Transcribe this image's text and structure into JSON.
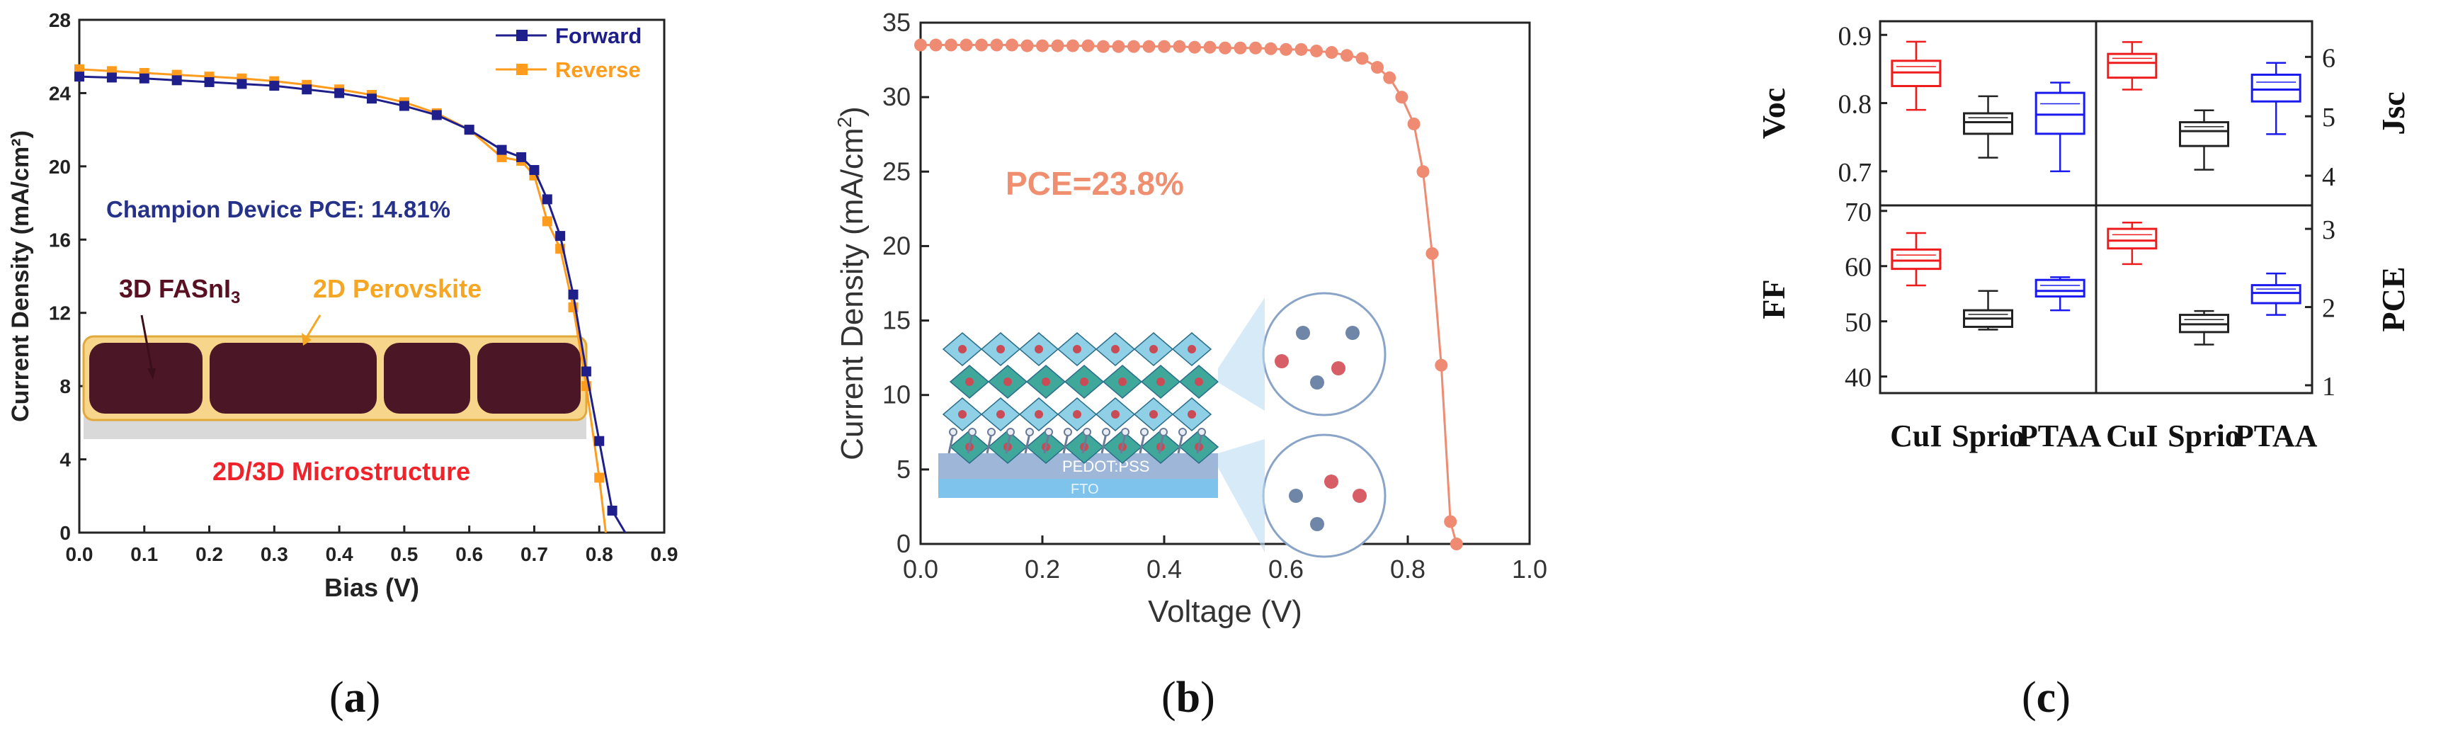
{
  "panel_labels": {
    "a": "a",
    "b": "b",
    "c": "c"
  },
  "colors": {
    "forward": "#1f1f8c",
    "reverse": "#ff9c1e",
    "jv_b": "#ee8b72",
    "cui": "#ee1c1c",
    "sprio": "#222222",
    "ptaa": "#1a1aee"
  },
  "chart_data": [
    {
      "type": "line",
      "xlabel": "Bias (V)",
      "ylabel": "Current Density (mA/cm²)",
      "xlim": [
        0.0,
        0.9
      ],
      "ylim": [
        0,
        28
      ],
      "xticks": [
        "0.0",
        "0.1",
        "0.2",
        "0.3",
        "0.4",
        "0.5",
        "0.6",
        "0.7",
        "0.8",
        "0.9"
      ],
      "yticks": [
        "0",
        "4",
        "8",
        "12",
        "16",
        "20",
        "24",
        "28"
      ],
      "legend": "top-right",
      "series": [
        {
          "name": "Forward",
          "marker": "square",
          "voc": 0.84,
          "jsc": 24.9,
          "x": [
            0.0,
            0.05,
            0.1,
            0.15,
            0.2,
            0.25,
            0.3,
            0.35,
            0.4,
            0.45,
            0.5,
            0.55,
            0.6,
            0.65,
            0.68,
            0.7,
            0.72,
            0.74,
            0.76,
            0.78,
            0.8,
            0.82
          ],
          "y": [
            24.9,
            24.85,
            24.8,
            24.7,
            24.6,
            24.5,
            24.4,
            24.2,
            24.0,
            23.7,
            23.3,
            22.8,
            22.0,
            20.9,
            20.5,
            19.8,
            18.2,
            16.2,
            13.0,
            8.8,
            5.0,
            1.2
          ]
        },
        {
          "name": "Reverse",
          "marker": "square",
          "voc": 0.81,
          "jsc": 25.3,
          "x": [
            0.0,
            0.05,
            0.1,
            0.15,
            0.2,
            0.25,
            0.3,
            0.35,
            0.4,
            0.45,
            0.5,
            0.55,
            0.6,
            0.65,
            0.68,
            0.7,
            0.72,
            0.74,
            0.76,
            0.78,
            0.8
          ],
          "y": [
            25.3,
            25.2,
            25.1,
            25.0,
            24.9,
            24.8,
            24.65,
            24.45,
            24.2,
            23.9,
            23.5,
            22.9,
            22.0,
            20.5,
            20.3,
            19.5,
            17.0,
            15.5,
            12.3,
            8.0,
            3.0
          ]
        }
      ],
      "annotations": [
        {
          "text": "Champion Device PCE: 14.81%"
        },
        {
          "text": "3D FASnI",
          "sub": "3"
        },
        {
          "text": "2D Perovskite"
        },
        {
          "text": "2D/3D Microstructure"
        }
      ]
    },
    {
      "type": "line",
      "xlabel": "Voltage (V)",
      "ylabel": "Current Density (mA/cm",
      "ylabel_sup": "2",
      "ylabel_end": ")",
      "xlim": [
        0.0,
        1.0
      ],
      "ylim": [
        0,
        35
      ],
      "xticks": [
        "0.0",
        "0.2",
        "0.4",
        "0.6",
        "0.8",
        "1.0"
      ],
      "yticks": [
        "0",
        "5",
        "10",
        "15",
        "20",
        "25",
        "30",
        "35"
      ],
      "series": [
        {
          "name": "",
          "marker": "circle",
          "voc": 0.88,
          "jsc": 33.5,
          "x": [
            0.0,
            0.025,
            0.05,
            0.075,
            0.1,
            0.125,
            0.15,
            0.175,
            0.2,
            0.225,
            0.25,
            0.275,
            0.3,
            0.325,
            0.35,
            0.375,
            0.4,
            0.425,
            0.45,
            0.475,
            0.5,
            0.525,
            0.55,
            0.575,
            0.6,
            0.625,
            0.65,
            0.675,
            0.7,
            0.725,
            0.75,
            0.77,
            0.79,
            0.81,
            0.825,
            0.84,
            0.855,
            0.87,
            0.88
          ],
          "y": [
            33.5,
            33.5,
            33.5,
            33.5,
            33.5,
            33.5,
            33.5,
            33.45,
            33.45,
            33.45,
            33.45,
            33.45,
            33.4,
            33.4,
            33.4,
            33.4,
            33.4,
            33.4,
            33.35,
            33.35,
            33.3,
            33.3,
            33.3,
            33.25,
            33.2,
            33.2,
            33.1,
            33.0,
            32.8,
            32.6,
            32.0,
            31.3,
            30.0,
            28.2,
            25.0,
            19.5,
            12.0,
            1.5,
            0.0
          ]
        }
      ],
      "annotations": [
        {
          "text": "PCE=23.8%"
        },
        {
          "text": "PEDOT:PSS"
        },
        {
          "text": "FTO"
        }
      ]
    },
    {
      "type": "box",
      "subplots": [
        {
          "ylabel": "Voc",
          "axis": "left",
          "ylim": [
            0.65,
            0.92
          ],
          "yticks": [
            "0.7",
            "0.8",
            "0.9"
          ],
          "boxes": [
            {
              "group": "CuI",
              "min": 0.79,
              "q1": 0.825,
              "median": 0.845,
              "q3": 0.862,
              "max": 0.89
            },
            {
              "group": "Sprio",
              "min": 0.72,
              "q1": 0.755,
              "median": 0.772,
              "q3": 0.785,
              "max": 0.81
            },
            {
              "group": "PTAA",
              "min": 0.7,
              "q1": 0.755,
              "median": 0.783,
              "q3": 0.815,
              "max": 0.83
            }
          ]
        },
        {
          "ylabel": "Jsc",
          "axis": "right",
          "ylim": [
            3.5,
            6.6
          ],
          "yticks": [
            "4",
            "5",
            "6"
          ],
          "boxes": [
            {
              "group": "CuI",
              "min": 5.45,
              "q1": 5.65,
              "median": 5.9,
              "q3": 6.05,
              "max": 6.25
            },
            {
              "group": "Sprio",
              "min": 4.1,
              "q1": 4.5,
              "median": 4.75,
              "q3": 4.9,
              "max": 5.1
            },
            {
              "group": "PTAA",
              "min": 4.7,
              "q1": 5.25,
              "median": 5.45,
              "q3": 5.7,
              "max": 5.9
            }
          ]
        },
        {
          "ylabel": "FF",
          "axis": "left",
          "ylim": [
            37,
            71
          ],
          "yticks": [
            "40",
            "50",
            "60",
            "70"
          ],
          "boxes": [
            {
              "group": "CuI",
              "min": 56.5,
              "q1": 59.5,
              "median": 61,
              "q3": 63,
              "max": 66
            },
            {
              "group": "Sprio",
              "min": 48.5,
              "q1": 49,
              "median": 50.5,
              "q3": 52,
              "max": 55.5
            },
            {
              "group": "PTAA",
              "min": 52,
              "q1": 54.5,
              "median": 55.5,
              "q3": 57.5,
              "max": 58
            }
          ]
        },
        {
          "ylabel": "PCE",
          "axis": "right",
          "ylim": [
            0.9,
            3.3
          ],
          "yticks": [
            "1",
            "2",
            "3"
          ],
          "boxes": [
            {
              "group": "CuI",
              "min": 2.55,
              "q1": 2.75,
              "median": 2.85,
              "q3": 3.0,
              "max": 3.08
            },
            {
              "group": "Sprio",
              "min": 1.52,
              "q1": 1.68,
              "median": 1.78,
              "q3": 1.9,
              "max": 1.95
            },
            {
              "group": "PTAA",
              "min": 1.9,
              "q1": 2.05,
              "median": 2.18,
              "q3": 2.28,
              "max": 2.43
            }
          ]
        }
      ],
      "groups": [
        "CuI",
        "Sprio",
        "PTAA",
        "CuI",
        "Sprio",
        "PTAA"
      ]
    }
  ]
}
